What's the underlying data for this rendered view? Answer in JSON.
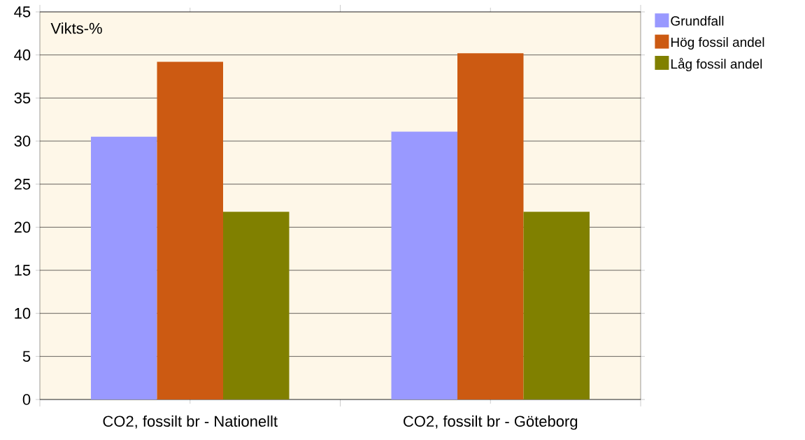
{
  "chart_data": {
    "type": "bar",
    "ylabel": "Vikts-%",
    "categories": [
      "CO2, fossilt br - Nationellt",
      "CO2, fossilt br - Göteborg"
    ],
    "series": [
      {
        "name": "Grundfall",
        "color": "#9999ff",
        "values": [
          30.5,
          31.1
        ]
      },
      {
        "name": "Hög fossil andel",
        "color": "#cc5a12",
        "values": [
          39.2,
          40.2
        ]
      },
      {
        "name": "Låg fossil andel",
        "color": "#808000",
        "values": [
          21.8,
          21.8
        ]
      }
    ],
    "ylim": [
      0,
      45
    ],
    "yticks": [
      0,
      5,
      10,
      15,
      20,
      25,
      30,
      35,
      40,
      45
    ],
    "grid": "y",
    "legend": "top right"
  }
}
